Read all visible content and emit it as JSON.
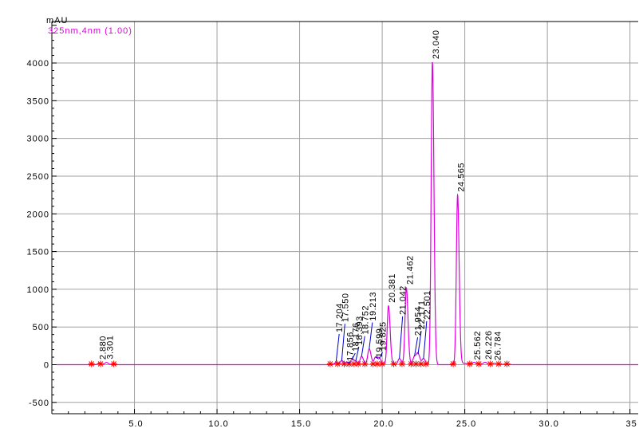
{
  "chart_data": {
    "type": "line",
    "ylabel": "mAU",
    "series_label": "325nm,4nm (1.00)",
    "xlim": [
      0,
      35.5
    ],
    "ylim": [
      -650,
      4550
    ],
    "x_ticks": [
      {
        "value": 5,
        "label": "5.0"
      },
      {
        "value": 10,
        "label": "10.0"
      },
      {
        "value": 15,
        "label": "15.0"
      },
      {
        "value": 20,
        "label": "20.0"
      },
      {
        "value": 25,
        "label": "25.0"
      },
      {
        "value": 30,
        "label": "30.0"
      },
      {
        "value": 35,
        "label": "35"
      }
    ],
    "y_ticks": [
      {
        "value": -500,
        "label": "-500"
      },
      {
        "value": 0,
        "label": "0"
      },
      {
        "value": 500,
        "label": "500"
      },
      {
        "value": 1000,
        "label": "1000"
      },
      {
        "value": 1500,
        "label": "1500"
      },
      {
        "value": 2000,
        "label": "2000"
      },
      {
        "value": 2500,
        "label": "2500"
      },
      {
        "value": 3000,
        "label": "3000"
      },
      {
        "value": 3500,
        "label": "3500"
      },
      {
        "value": 4000,
        "label": "4000"
      }
    ],
    "grid": true,
    "colors": {
      "trace": "#e000e0",
      "marker": "#ff0000",
      "leader": "#0000cc",
      "grid": "#a0a0a0",
      "axis": "#000000"
    },
    "peaks": [
      {
        "label": "2.880",
        "rt": 2.88,
        "height": 25
      },
      {
        "label": "3.301",
        "rt": 3.301,
        "height": 30
      },
      {
        "label": "17.204",
        "rt": 17.204,
        "height": 30
      },
      {
        "label": "17.550",
        "rt": 17.55,
        "height": 55
      },
      {
        "label": "17.856",
        "rt": 17.856,
        "height": 30
      },
      {
        "label": "18.176",
        "rt": 18.176,
        "height": 70
      },
      {
        "label": "18.393",
        "rt": 18.393,
        "height": 40
      },
      {
        "label": "18.752",
        "rt": 18.752,
        "height": 110
      },
      {
        "label": "19.213",
        "rt": 19.213,
        "height": 210
      },
      {
        "label": "19.599",
        "rt": 19.599,
        "height": 100
      },
      {
        "label": "19.825",
        "rt": 19.825,
        "height": 80
      },
      {
        "label": "20.381",
        "rt": 20.381,
        "height": 780
      },
      {
        "label": "21.042",
        "rt": 21.042,
        "height": 80
      },
      {
        "label": "21.462",
        "rt": 21.462,
        "height": 1020
      },
      {
        "label": "21.954",
        "rt": 21.954,
        "height": 110
      },
      {
        "label": "22.171",
        "rt": 22.171,
        "height": 140
      },
      {
        "label": "22.501",
        "rt": 22.501,
        "height": 80
      },
      {
        "label": "23.040",
        "rt": 23.04,
        "height": 4010
      },
      {
        "label": "24.565",
        "rt": 24.565,
        "height": 2250
      },
      {
        "label": "25.562",
        "rt": 25.562,
        "height": 20
      },
      {
        "label": "26.226",
        "rt": 26.226,
        "height": 25
      },
      {
        "label": "26.784",
        "rt": 26.784,
        "height": 15
      }
    ],
    "integration_marks": [
      2.4,
      2.95,
      3.75,
      16.85,
      17.3,
      17.7,
      18.0,
      18.3,
      18.55,
      18.95,
      19.45,
      19.7,
      20.0,
      20.7,
      21.2,
      21.75,
      22.05,
      22.35,
      22.65,
      24.3,
      25.3,
      25.85,
      26.55,
      27.05,
      27.55
    ]
  }
}
